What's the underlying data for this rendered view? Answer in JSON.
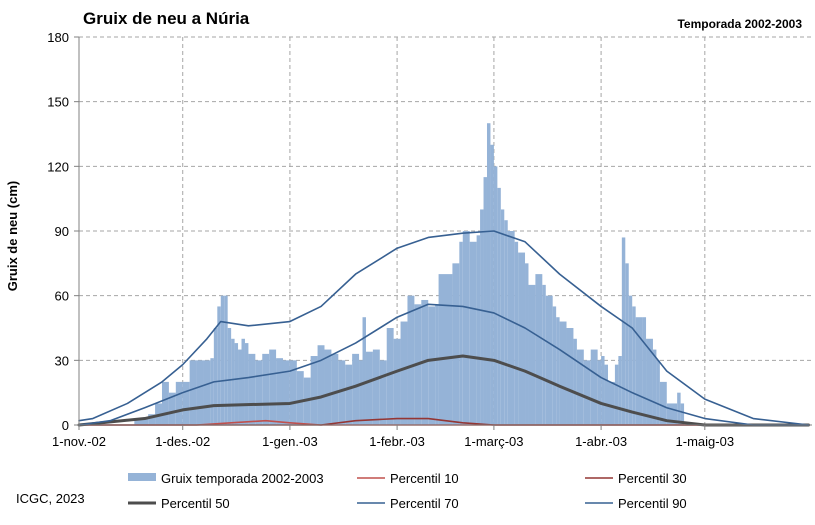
{
  "chart_data": {
    "type": "bar+line",
    "title": "Gruix de neu a Núria",
    "subtitle": "Temporada 2002-2003",
    "ylabel": "Gruix de neu (cm)",
    "ylim": [
      0,
      180
    ],
    "yticks": [
      "0",
      "30",
      "60",
      "90",
      "120",
      "150",
      "180"
    ],
    "xlim": [
      "2002-11-01",
      "2003-05-31"
    ],
    "xticks": [
      {
        "date": "2002-11-01",
        "label": "1-nov.-02"
      },
      {
        "date": "2002-12-01",
        "label": "1-des.-02"
      },
      {
        "date": "2003-01-01",
        "label": "1-gen.-03"
      },
      {
        "date": "2003-02-01",
        "label": "1-febr.-03"
      },
      {
        "date": "2003-03-01",
        "label": "1-març-03"
      },
      {
        "date": "2003-04-01",
        "label": "1-abr.-03"
      },
      {
        "date": "2003-05-01",
        "label": "1-maig-03"
      }
    ],
    "grid": "dashed",
    "legend_position": "bottom",
    "bars": {
      "name": "Gruix temporada 2002-2003",
      "color": "#95b3d7",
      "points": [
        [
          "2002-11-17",
          3
        ],
        [
          "2002-11-21",
          5
        ],
        [
          "2002-11-23",
          10
        ],
        [
          "2002-11-25",
          20
        ],
        [
          "2002-11-27",
          15
        ],
        [
          "2002-11-29",
          20
        ],
        [
          "2002-12-01",
          20
        ],
        [
          "2002-12-03",
          30
        ],
        [
          "2002-12-05",
          30
        ],
        [
          "2002-12-07",
          30
        ],
        [
          "2002-12-09",
          31
        ],
        [
          "2002-12-10",
          45
        ],
        [
          "2002-12-11",
          55
        ],
        [
          "2002-12-12",
          60
        ],
        [
          "2002-12-13",
          60
        ],
        [
          "2002-12-14",
          45
        ],
        [
          "2002-12-15",
          40
        ],
        [
          "2002-12-16",
          38
        ],
        [
          "2002-12-17",
          35
        ],
        [
          "2002-12-18",
          40
        ],
        [
          "2002-12-19",
          38
        ],
        [
          "2002-12-20",
          33
        ],
        [
          "2002-12-22",
          30
        ],
        [
          "2002-12-24",
          33
        ],
        [
          "2002-12-26",
          35
        ],
        [
          "2002-12-28",
          31
        ],
        [
          "2002-12-30",
          30
        ],
        [
          "2003-01-01",
          30
        ],
        [
          "2003-01-03",
          25
        ],
        [
          "2003-01-05",
          22
        ],
        [
          "2003-01-07",
          32
        ],
        [
          "2003-01-09",
          37
        ],
        [
          "2003-01-11",
          35
        ],
        [
          "2003-01-13",
          33
        ],
        [
          "2003-01-15",
          30
        ],
        [
          "2003-01-17",
          28
        ],
        [
          "2003-01-19",
          33
        ],
        [
          "2003-01-21",
          30
        ],
        [
          "2003-01-22",
          50
        ],
        [
          "2003-01-23",
          34
        ],
        [
          "2003-01-25",
          35
        ],
        [
          "2003-01-27",
          30
        ],
        [
          "2003-01-29",
          45
        ],
        [
          "2003-01-31",
          40
        ],
        [
          "2003-02-02",
          48
        ],
        [
          "2003-02-04",
          60
        ],
        [
          "2003-02-06",
          56
        ],
        [
          "2003-02-08",
          58
        ],
        [
          "2003-02-10",
          55
        ],
        [
          "2003-02-12",
          56
        ],
        [
          "2003-02-13",
          70
        ],
        [
          "2003-02-15",
          70
        ],
        [
          "2003-02-17",
          75
        ],
        [
          "2003-02-19",
          85
        ],
        [
          "2003-02-20",
          90
        ],
        [
          "2003-02-22",
          85
        ],
        [
          "2003-02-24",
          88
        ],
        [
          "2003-02-25",
          100
        ],
        [
          "2003-02-26",
          115
        ],
        [
          "2003-02-27",
          140
        ],
        [
          "2003-02-28",
          130
        ],
        [
          "2003-03-01",
          120
        ],
        [
          "2003-03-02",
          110
        ],
        [
          "2003-03-03",
          100
        ],
        [
          "2003-03-04",
          95
        ],
        [
          "2003-03-05",
          90
        ],
        [
          "2003-03-07",
          85
        ],
        [
          "2003-03-08",
          80
        ],
        [
          "2003-03-10",
          75
        ],
        [
          "2003-03-11",
          65
        ],
        [
          "2003-03-13",
          70
        ],
        [
          "2003-03-15",
          65
        ],
        [
          "2003-03-16",
          60
        ],
        [
          "2003-03-18",
          55
        ],
        [
          "2003-03-19",
          50
        ],
        [
          "2003-03-20",
          48
        ],
        [
          "2003-03-22",
          45
        ],
        [
          "2003-03-24",
          40
        ],
        [
          "2003-03-25",
          35
        ],
        [
          "2003-03-27",
          30
        ],
        [
          "2003-03-29",
          35
        ],
        [
          "2003-03-31",
          30
        ],
        [
          "2003-04-01",
          32
        ],
        [
          "2003-04-02",
          28
        ],
        [
          "2003-04-03",
          20
        ],
        [
          "2003-04-05",
          28
        ],
        [
          "2003-04-06",
          32
        ],
        [
          "2003-04-07",
          87
        ],
        [
          "2003-04-08",
          75
        ],
        [
          "2003-04-09",
          60
        ],
        [
          "2003-04-10",
          55
        ],
        [
          "2003-04-11",
          50
        ],
        [
          "2003-04-13",
          50
        ],
        [
          "2003-04-14",
          40
        ],
        [
          "2003-04-16",
          35
        ],
        [
          "2003-04-17",
          30
        ],
        [
          "2003-04-18",
          20
        ],
        [
          "2003-04-20",
          10
        ],
        [
          "2003-04-23",
          15
        ],
        [
          "2003-04-24",
          10
        ]
      ]
    },
    "series": [
      {
        "name": "Percentil 10",
        "color": "#c0504d",
        "width": 1.6,
        "points": [
          [
            "2002-11-01",
            0
          ],
          [
            "2002-12-05",
            0
          ],
          [
            "2002-12-15",
            1
          ],
          [
            "2002-12-25",
            2
          ],
          [
            "2003-01-01",
            1
          ],
          [
            "2003-01-10",
            0
          ],
          [
            "2003-03-20",
            0
          ],
          [
            "2003-05-31",
            0
          ]
        ]
      },
      {
        "name": "Percentil 30",
        "color": "#943634",
        "width": 1.6,
        "points": [
          [
            "2002-11-01",
            0
          ],
          [
            "2003-01-10",
            0
          ],
          [
            "2003-01-20",
            2
          ],
          [
            "2003-02-01",
            3
          ],
          [
            "2003-02-10",
            3
          ],
          [
            "2003-02-20",
            1
          ],
          [
            "2003-03-01",
            0
          ],
          [
            "2003-05-31",
            0
          ]
        ]
      },
      {
        "name": "Percentil 50",
        "color": "#4d4d4d",
        "width": 3,
        "points": [
          [
            "2002-11-01",
            0
          ],
          [
            "2002-11-20",
            3
          ],
          [
            "2002-12-01",
            7
          ],
          [
            "2002-12-10",
            9
          ],
          [
            "2003-01-01",
            10
          ],
          [
            "2003-01-10",
            13
          ],
          [
            "2003-01-20",
            18
          ],
          [
            "2003-02-01",
            25
          ],
          [
            "2003-02-10",
            30
          ],
          [
            "2003-02-20",
            32
          ],
          [
            "2003-03-01",
            30
          ],
          [
            "2003-03-10",
            25
          ],
          [
            "2003-03-20",
            18
          ],
          [
            "2003-04-01",
            10
          ],
          [
            "2003-04-10",
            6
          ],
          [
            "2003-04-20",
            2
          ],
          [
            "2003-05-01",
            0
          ],
          [
            "2003-05-31",
            0
          ]
        ]
      },
      {
        "name": "Percentil 70",
        "color": "#376092",
        "width": 1.6,
        "points": [
          [
            "2002-11-01",
            0
          ],
          [
            "2002-11-10",
            2
          ],
          [
            "2002-11-20",
            8
          ],
          [
            "2002-12-01",
            15
          ],
          [
            "2002-12-10",
            20
          ],
          [
            "2002-12-20",
            22
          ],
          [
            "2003-01-01",
            25
          ],
          [
            "2003-01-10",
            30
          ],
          [
            "2003-01-20",
            38
          ],
          [
            "2003-02-01",
            50
          ],
          [
            "2003-02-10",
            56
          ],
          [
            "2003-02-20",
            55
          ],
          [
            "2003-03-01",
            52
          ],
          [
            "2003-03-10",
            45
          ],
          [
            "2003-03-20",
            35
          ],
          [
            "2003-04-01",
            22
          ],
          [
            "2003-04-10",
            15
          ],
          [
            "2003-04-20",
            8
          ],
          [
            "2003-05-01",
            3
          ],
          [
            "2003-05-15",
            0
          ],
          [
            "2003-05-31",
            0
          ]
        ]
      },
      {
        "name": "Percentil 90",
        "color": "#376092",
        "width": 1.6,
        "points": [
          [
            "2002-11-01",
            2
          ],
          [
            "2002-11-05",
            3
          ],
          [
            "2002-11-15",
            10
          ],
          [
            "2002-11-25",
            20
          ],
          [
            "2002-12-01",
            28
          ],
          [
            "2002-12-08",
            40
          ],
          [
            "2002-12-12",
            48
          ],
          [
            "2002-12-20",
            46
          ],
          [
            "2003-01-01",
            48
          ],
          [
            "2003-01-10",
            55
          ],
          [
            "2003-01-20",
            70
          ],
          [
            "2003-02-01",
            82
          ],
          [
            "2003-02-10",
            87
          ],
          [
            "2003-02-20",
            89
          ],
          [
            "2003-03-01",
            90
          ],
          [
            "2003-03-10",
            85
          ],
          [
            "2003-03-20",
            70
          ],
          [
            "2003-04-01",
            55
          ],
          [
            "2003-04-10",
            45
          ],
          [
            "2003-04-20",
            25
          ],
          [
            "2003-05-01",
            12
          ],
          [
            "2003-05-15",
            3
          ],
          [
            "2003-05-31",
            0
          ]
        ]
      }
    ]
  },
  "credit": "ICGC, 2023"
}
